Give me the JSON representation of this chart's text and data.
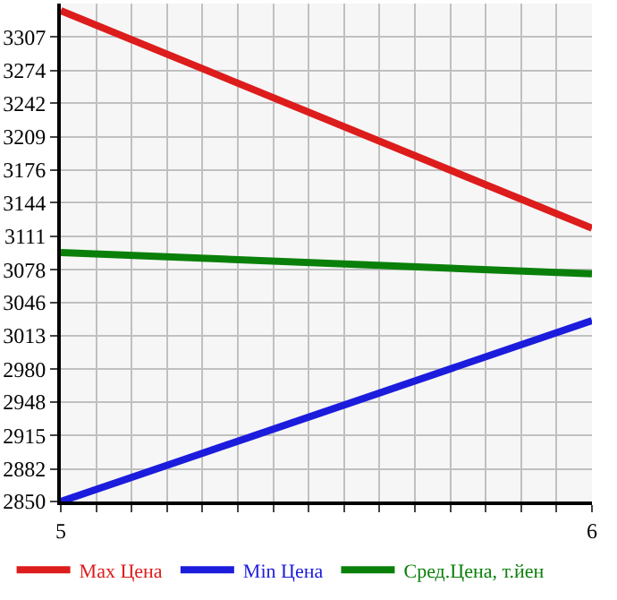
{
  "chart_data": {
    "type": "line",
    "x": [
      5,
      6
    ],
    "series": [
      {
        "name": "Max Цена",
        "color": "#dd1c1c",
        "values": [
          3333,
          3119
        ]
      },
      {
        "name": "Min Цена",
        "color": "#1c1cdd",
        "values": [
          2850,
          3028
        ]
      },
      {
        "name": "Сред.Цена, т.йен",
        "color": "#0a800a",
        "values": [
          3095,
          3074
        ]
      }
    ],
    "xlim": [
      5,
      6
    ],
    "xticks": [
      5,
      {
        "value": 5.0667,
        "label": null
      },
      {
        "value": 5.1333,
        "label": null
      },
      {
        "value": 5.2,
        "label": null
      },
      {
        "value": 5.2667,
        "label": null
      },
      {
        "value": 5.3333,
        "label": null
      },
      {
        "value": 5.4,
        "label": null
      },
      {
        "value": 5.4667,
        "label": null
      },
      {
        "value": 5.5333,
        "label": null
      },
      {
        "value": 5.6,
        "label": null
      },
      {
        "value": 5.6667,
        "label": null
      },
      {
        "value": 5.7333,
        "label": null
      },
      {
        "value": 5.8,
        "label": null
      },
      {
        "value": 5.8667,
        "label": null
      },
      {
        "value": 5.9333,
        "label": null
      },
      6
    ],
    "ylim": [
      2850,
      3340
    ],
    "yticks": [
      2850,
      2882,
      2915,
      2948,
      2980,
      3013,
      3046,
      3078,
      3111,
      3144,
      3176,
      3209,
      3242,
      3274,
      3307
    ],
    "grid": true,
    "legend": "bottom",
    "marker": "none",
    "line_style": "solid"
  }
}
